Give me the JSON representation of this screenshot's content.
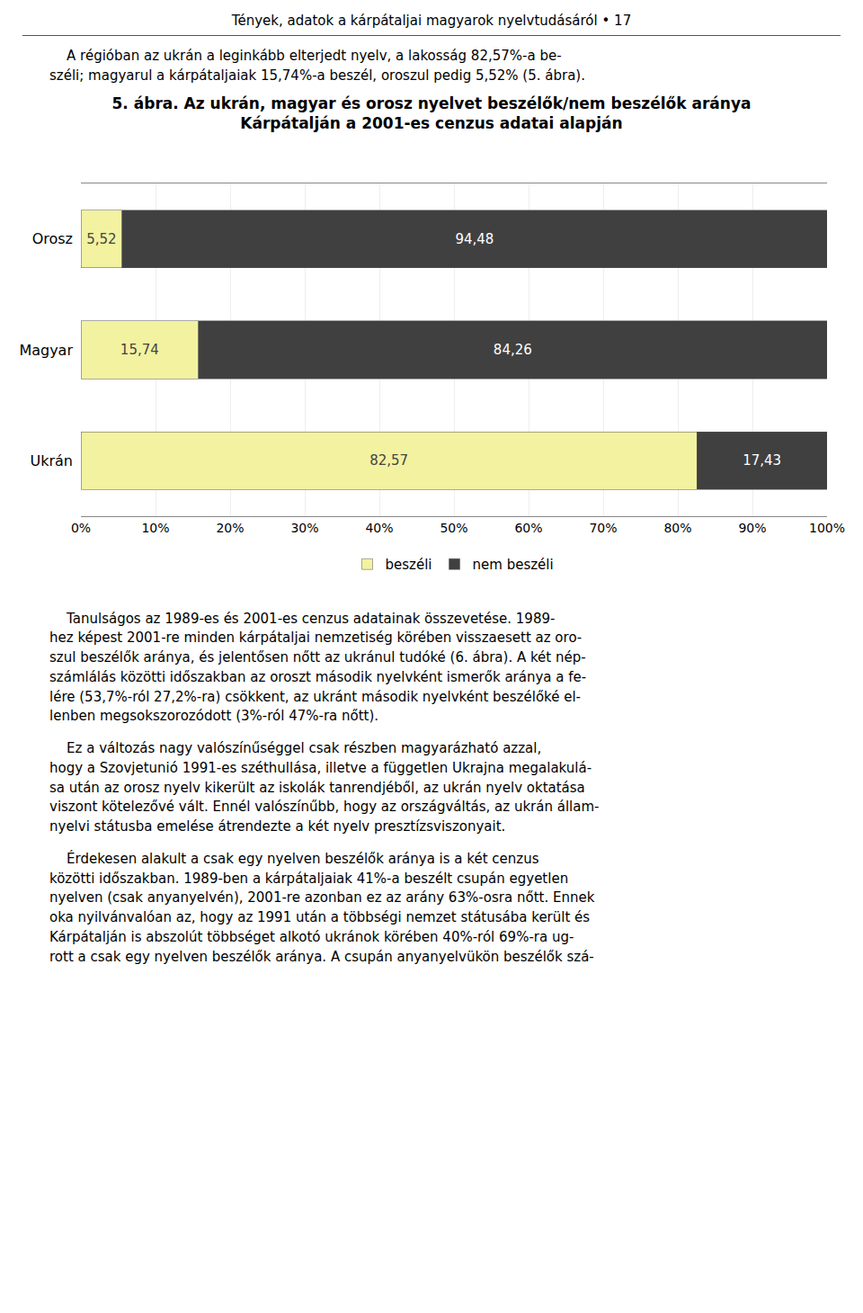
{
  "chart_data": {
    "type": "bar",
    "orientation": "horizontal",
    "stacked": true,
    "title": "5. ábra. Az ukrán, magyar és orosz nyelvet beszélők/nem beszélők aránya",
    "subtitle": "Kárpátalján a 2001-es cenzus adatai alapján",
    "annotations": [
      "Tények, adatok a kárpátaljai magyarok nyelvtudásáról • 17",
      "    A régióban az ukrán a leginkább elterjedt nyelv, a lakosság 82,57%-a be-\nszéli; magyarul a kárpátaljaiak 15,74%-a beszél, oroszul pedig 5,52% (5. ábra).",
      "    Tanulságos az 1989-es és 2001-es cenzus adatainak összevetése. 1989-\nhez képest 2001-re minden kárpátaljai nemzetiség körében visszaesett az oro-\nszul beszélők aránya, és jelentősen nőtt az ukránul tudóké (6. ábra). A két nép-\nszámlálás közötti időszakban az oroszt második nyelvként ismerők aránya a fe-\nlére (53,7%-ról 27,2%-ra) csökkent, az ukránt második nyelvként beszélőké el-\nlenben megsokszorozódott (3%-ról 47%-ra nőtt).",
      "    Ez a változás nagy valószínűséggel csak részben magyarázható azzal,\nhogy a Szovjetunió 1991-es széthullása, illetve a független Ukrajna megalakulá-\nsa után az orosz nyelv kikerült az iskolák tanrendjéből, az ukrán nyelv oktatása\nviszont kötelezővé vált. Ennél valószínűbb, hogy az országváltás, az ukrán állam-\nnyelvi státusba emelése átrendezte a két nyelv presztízsviszonyait.",
      "    Érdekesen alakult a csak egy nyelven beszélők aránya is a két cenzus\nközötti időszakban. 1989-ben a kárpátaljaiak 41%-a beszélt csupán egyetlen\nnyelven (csak anyanyelvén), 2001-re azonban ez az arány 63%-osra nőtt. Ennek\noka nyilvánvalóan az, hogy az 1991 után a többségi nemzet státusába került és\nKárpátalján is abszolút többséget alkotó ukránok körében 40%-ról 69%-ra ug-\nrott a csak egy nyelven beszélők aránya. A csupán anyanyelvükön beszélők szá-"
    ],
    "categories": [
      "Orosz",
      "Magyar",
      "Ukrán"
    ],
    "series": [
      {
        "name": "beszéli",
        "color": "#f2f2a0",
        "values": [
          5.52,
          15.74,
          82.57
        ],
        "value_labels": [
          "5,52",
          "15,74",
          "82,57"
        ]
      },
      {
        "name": "nem beszéli",
        "color": "#404040",
        "values": [
          94.48,
          84.26,
          17.43
        ],
        "value_labels": [
          "94,48",
          "84,26",
          "17,43"
        ]
      }
    ],
    "data_labels": true,
    "xlim": [
      0,
      100
    ],
    "xticks": [
      {
        "value": 0,
        "label": "0%"
      },
      {
        "value": 10,
        "label": "10%"
      },
      {
        "value": 20,
        "label": "20%"
      },
      {
        "value": 30,
        "label": "30%"
      },
      {
        "value": 40,
        "label": "40%"
      },
      {
        "value": 50,
        "label": "50%"
      },
      {
        "value": 60,
        "label": "60%"
      },
      {
        "value": 70,
        "label": "70%"
      },
      {
        "value": 80,
        "label": "80%"
      },
      {
        "value": 90,
        "label": "90%"
      },
      {
        "value": 100,
        "label": "100%"
      }
    ],
    "grid": true,
    "legend": "bottom"
  }
}
